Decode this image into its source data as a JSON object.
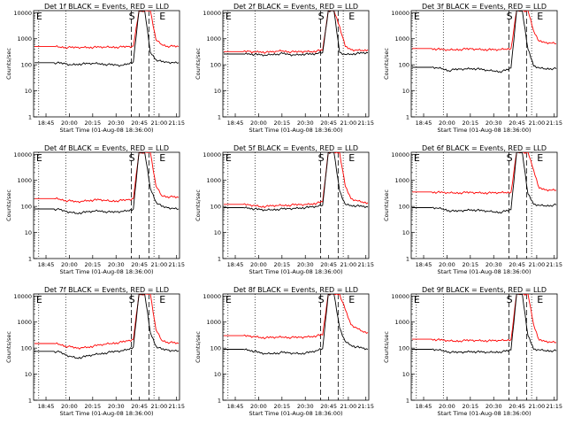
{
  "chart_data": [
    {
      "type": "line",
      "title": "Det 1f BLACK = Events, RED = LLD",
      "xlabel": "Start Time (01-Aug-08 18:36:00)",
      "ylabel": "Counts/sec",
      "yscale": "log",
      "ylim": [
        1,
        12000
      ],
      "x_ticks": [
        "18:45",
        "20:00",
        "20:15",
        "20:30",
        "20:45",
        "21:00",
        "21:15"
      ],
      "y_ticks": [
        "1",
        "10",
        "100",
        "1000",
        "10000"
      ],
      "markers": [
        "E",
        "S",
        "E"
      ],
      "series": [
        {
          "color": "#ff0000",
          "values": [
            500,
            480,
            470,
            460,
            465,
            470,
            468,
            470,
            472,
            475,
            480,
            478,
            480,
            500,
            520,
            12000,
            12000,
            12000,
            900,
            600,
            520,
            510,
            500
          ]
        },
        {
          "color": "#000000",
          "values": [
            120,
            115,
            110,
            100,
            105,
            108,
            110,
            112,
            110,
            105,
            100,
            98,
            95,
            110,
            130,
            12000,
            12000,
            300,
            160,
            130,
            125,
            122,
            120
          ]
        }
      ]
    },
    {
      "type": "line",
      "title": "Det 2f BLACK = Events, RED = LLD",
      "xlabel": "Start Time (01-Aug-08 18:36:00)",
      "ylabel": "Counts/sec",
      "yscale": "log",
      "ylim": [
        1,
        12000
      ],
      "x_ticks": [
        "18:45",
        "20:00",
        "20:15",
        "20:30",
        "20:45",
        "21:00",
        "21:15"
      ],
      "y_ticks": [
        "1",
        "10",
        "100",
        "1000",
        "10000"
      ],
      "markers": [
        "E",
        "S",
        "E"
      ],
      "series": [
        {
          "color": "#ff0000",
          "values": [
            320,
            330,
            310,
            320,
            300,
            310,
            330,
            340,
            320,
            310,
            320,
            330,
            320,
            340,
            360,
            12000,
            12000,
            3000,
            500,
            380,
            370,
            360,
            380
          ]
        },
        {
          "color": "#000000",
          "values": [
            260,
            270,
            250,
            240,
            230,
            250,
            260,
            270,
            250,
            240,
            250,
            260,
            250,
            270,
            290,
            12000,
            12000,
            300,
            250,
            260,
            270,
            280,
            290
          ]
        }
      ]
    },
    {
      "type": "line",
      "title": "Det 3f BLACK = Events, RED = LLD",
      "xlabel": "Start Time (01-Aug-08 18:36:00)",
      "ylabel": "Counts/sec",
      "yscale": "log",
      "ylim": [
        1,
        12000
      ],
      "x_ticks": [
        "18:45",
        "20:00",
        "20:15",
        "20:30",
        "20:45",
        "21:00",
        "21:15"
      ],
      "y_ticks": [
        "1",
        "10",
        "100",
        "1000",
        "10000"
      ],
      "markers": [
        "E",
        "S",
        "E"
      ],
      "series": [
        {
          "color": "#ff0000",
          "values": [
            420,
            400,
            380,
            370,
            380,
            390,
            400,
            410,
            400,
            390,
            380,
            375,
            380,
            400,
            420,
            12000,
            12000,
            12000,
            2000,
            800,
            700,
            680,
            650
          ]
        },
        {
          "color": "#000000",
          "values": [
            80,
            75,
            70,
            60,
            65,
            68,
            70,
            72,
            70,
            65,
            60,
            58,
            55,
            60,
            75,
            12000,
            12000,
            400,
            90,
            75,
            70,
            72,
            70
          ]
        }
      ]
    },
    {
      "type": "line",
      "title": "Det 4f BLACK = Events, RED = LLD",
      "xlabel": "Start Time (01-Aug-08 18:36:00)",
      "ylabel": "Counts/sec",
      "yscale": "log",
      "ylim": [
        1,
        12000
      ],
      "x_ticks": [
        "18:45",
        "20:00",
        "20:15",
        "20:30",
        "20:45",
        "21:00",
        "21:15"
      ],
      "y_ticks": [
        "1",
        "10",
        "100",
        "1000",
        "10000"
      ],
      "markers": [
        "E",
        "S",
        "E"
      ],
      "series": [
        {
          "color": "#ff0000",
          "values": [
            200,
            190,
            170,
            160,
            150,
            160,
            170,
            175,
            180,
            170,
            160,
            165,
            170,
            180,
            200,
            12000,
            12000,
            12000,
            600,
            260,
            240,
            230,
            220
          ]
        },
        {
          "color": "#000000",
          "values": [
            80,
            75,
            65,
            60,
            55,
            58,
            62,
            65,
            68,
            64,
            60,
            62,
            65,
            70,
            80,
            12000,
            12000,
            500,
            150,
            100,
            90,
            85,
            80
          ]
        }
      ]
    },
    {
      "type": "line",
      "title": "Det 5f BLACK = Events, RED = LLD",
      "xlabel": "Start Time (01-Aug-08 18:36:00)",
      "ylabel": "Counts/sec",
      "yscale": "log",
      "ylim": [
        1,
        12000
      ],
      "x_ticks": [
        "18:45",
        "20:00",
        "20:15",
        "20:30",
        "20:45",
        "21:00",
        "21:15"
      ],
      "y_ticks": [
        "1",
        "10",
        "100",
        "1000",
        "10000"
      ],
      "markers": [
        "E",
        "S",
        "E"
      ],
      "series": [
        {
          "color": "#ff0000",
          "values": [
            120,
            115,
            110,
            100,
            100,
            105,
            108,
            110,
            112,
            115,
            118,
            120,
            125,
            135,
            150,
            12000,
            12000,
            12000,
            600,
            200,
            170,
            150,
            140
          ]
        },
        {
          "color": "#000000",
          "values": [
            90,
            88,
            80,
            75,
            72,
            75,
            78,
            80,
            82,
            85,
            88,
            90,
            95,
            100,
            110,
            12000,
            12000,
            400,
            120,
            110,
            105,
            100,
            95
          ]
        }
      ]
    },
    {
      "type": "line",
      "title": "Det 6f BLACK = Events, RED = LLD",
      "xlabel": "Start Time (01-Aug-08 18:36:00)",
      "ylabel": "Counts/sec",
      "yscale": "log",
      "ylim": [
        1,
        12000
      ],
      "x_ticks": [
        "18:45",
        "20:00",
        "20:15",
        "20:30",
        "20:45",
        "21:00",
        "21:15"
      ],
      "y_ticks": [
        "1",
        "10",
        "100",
        "1000",
        "10000"
      ],
      "markers": [
        "E",
        "S",
        "E"
      ],
      "series": [
        {
          "color": "#ff0000",
          "values": [
            360,
            350,
            340,
            330,
            330,
            335,
            340,
            345,
            340,
            335,
            330,
            330,
            335,
            340,
            350,
            12000,
            12000,
            12000,
            2500,
            500,
            430,
            420,
            420
          ]
        },
        {
          "color": "#000000",
          "values": [
            90,
            85,
            80,
            70,
            65,
            68,
            72,
            75,
            72,
            68,
            65,
            62,
            60,
            65,
            75,
            12000,
            12000,
            300,
            120,
            110,
            105,
            110,
            115
          ]
        }
      ]
    },
    {
      "type": "line",
      "title": "Det 7f BLACK = Events, RED = LLD",
      "xlabel": "Start Time (01-Aug-08 18:36:00)",
      "ylabel": "Counts/sec",
      "yscale": "log",
      "ylim": [
        1,
        12000
      ],
      "x_ticks": [
        "18:45",
        "20:00",
        "20:15",
        "20:30",
        "20:45",
        "21:00",
        "21:15"
      ],
      "y_ticks": [
        "1",
        "10",
        "100",
        "1000",
        "10000"
      ],
      "markers": [
        "E",
        "S",
        "E"
      ],
      "series": [
        {
          "color": "#ff0000",
          "values": [
            150,
            140,
            120,
            110,
            100,
            105,
            110,
            120,
            130,
            140,
            150,
            160,
            170,
            190,
            220,
            12000,
            12000,
            12000,
            500,
            200,
            170,
            160,
            150
          ]
        },
        {
          "color": "#000000",
          "values": [
            75,
            70,
            55,
            48,
            42,
            45,
            50,
            55,
            60,
            65,
            70,
            75,
            80,
            90,
            110,
            12000,
            12000,
            400,
            120,
            90,
            85,
            80,
            78
          ]
        }
      ]
    },
    {
      "type": "line",
      "title": "Det 8f BLACK = Events, RED = LLD",
      "xlabel": "Start Time (01-Aug-08 18:36:00)",
      "ylabel": "Counts/sec",
      "yscale": "log",
      "ylim": [
        1,
        12000
      ],
      "x_ticks": [
        "18:45",
        "20:00",
        "20:15",
        "20:30",
        "20:45",
        "21:00",
        "21:15"
      ],
      "y_ticks": [
        "1",
        "10",
        "100",
        "1000",
        "10000"
      ],
      "markers": [
        "E",
        "S",
        "E"
      ],
      "series": [
        {
          "color": "#ff0000",
          "values": [
            300,
            290,
            280,
            260,
            250,
            255,
            260,
            265,
            260,
            255,
            260,
            270,
            280,
            300,
            320,
            12000,
            12000,
            12000,
            3000,
            800,
            600,
            450,
            400
          ]
        },
        {
          "color": "#000000",
          "values": [
            90,
            85,
            75,
            65,
            60,
            62,
            65,
            68,
            66,
            64,
            62,
            65,
            70,
            80,
            95,
            12000,
            12000,
            600,
            180,
            130,
            110,
            100,
            90
          ]
        }
      ]
    },
    {
      "type": "line",
      "title": "Det 9f BLACK = Events, RED = LLD",
      "xlabel": "Start Time (01-Aug-08 18:36:00)",
      "ylabel": "Counts/sec",
      "yscale": "log",
      "ylim": [
        1,
        12000
      ],
      "x_ticks": [
        "18:45",
        "20:00",
        "20:15",
        "20:30",
        "20:45",
        "21:00",
        "21:15"
      ],
      "y_ticks": [
        "1",
        "10",
        "100",
        "1000",
        "10000"
      ],
      "markers": [
        "E",
        "S",
        "E"
      ],
      "series": [
        {
          "color": "#ff0000",
          "values": [
            220,
            210,
            200,
            190,
            185,
            190,
            195,
            200,
            198,
            195,
            190,
            192,
            195,
            200,
            210,
            12000,
            12000,
            12000,
            800,
            200,
            180,
            170,
            165
          ]
        },
        {
          "color": "#000000",
          "values": [
            90,
            85,
            80,
            72,
            68,
            70,
            72,
            75,
            72,
            70,
            68,
            70,
            72,
            75,
            85,
            12000,
            12000,
            300,
            90,
            85,
            80,
            80,
            78
          ]
        }
      ]
    }
  ]
}
